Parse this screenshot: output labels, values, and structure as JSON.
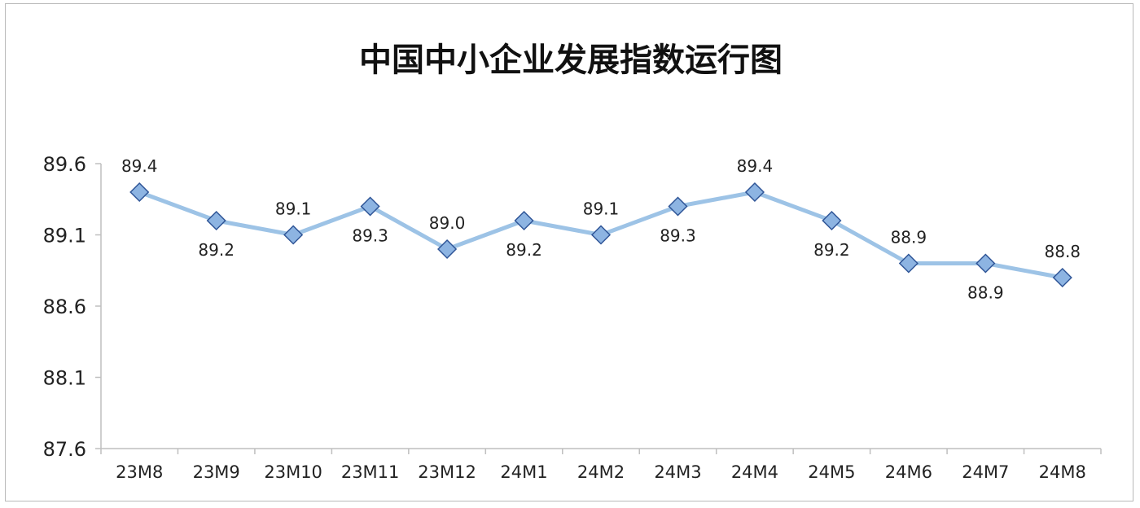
{
  "chart_data": {
    "type": "line",
    "title": "中国中小企业发展指数运行图",
    "xlabel": "",
    "ylabel": "",
    "categories": [
      "23M8",
      "23M9",
      "23M10",
      "23M11",
      "23M12",
      "24M1",
      "24M2",
      "24M3",
      "24M4",
      "24M5",
      "24M6",
      "24M7",
      "24M8"
    ],
    "series": [
      {
        "values": [
          89.4,
          89.2,
          89.1,
          89.3,
          89.0,
          89.2,
          89.1,
          89.3,
          89.4,
          89.2,
          88.9,
          88.9,
          88.8
        ],
        "value_labels": [
          "89.4",
          "89.2",
          "89.1",
          "89.3",
          "89.0",
          "89.2",
          "89.1",
          "89.3",
          "89.4",
          "89.2",
          "88.9",
          "88.9",
          "88.8"
        ],
        "label_positions": [
          "above",
          "below",
          "above",
          "below",
          "above",
          "below",
          "above",
          "below",
          "above",
          "below",
          "above",
          "below",
          "above"
        ],
        "line_color": "#9dc3e6",
        "marker": "diamond",
        "marker_fill": "#8db4e2",
        "marker_stroke": "#2f5597"
      }
    ],
    "ylim": [
      87.6,
      89.6
    ],
    "yticks": [
      87.6,
      88.1,
      88.6,
      89.1,
      89.6
    ],
    "ytick_labels": [
      "87.6",
      "88.1",
      "88.6",
      "89.1",
      "89.6"
    ],
    "grid": false,
    "legend": "none",
    "axis_color": "#bfbfbf"
  }
}
